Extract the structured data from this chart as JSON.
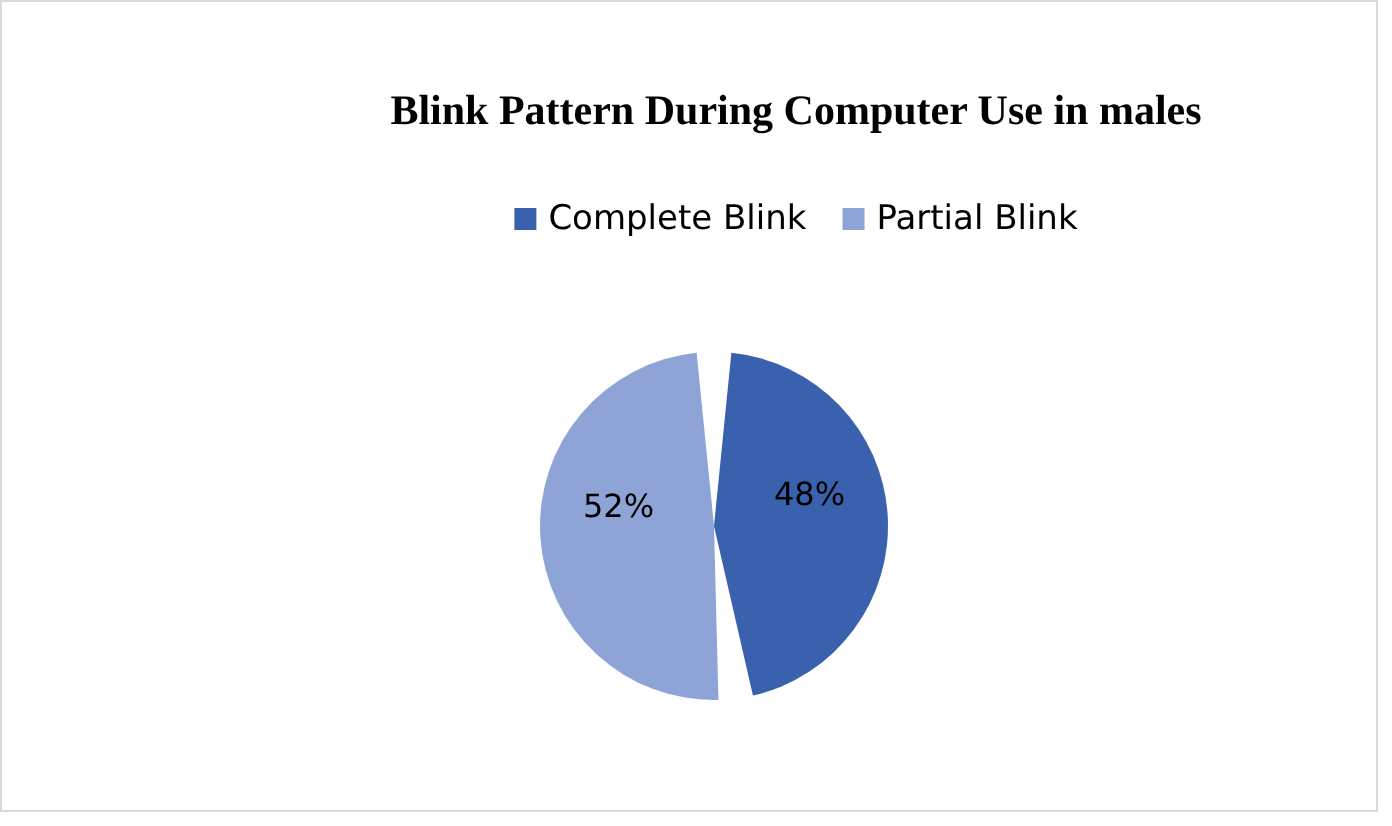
{
  "chart_data": {
    "type": "pie",
    "title": "Blink Pattern During Computer Use in males",
    "categories": [
      "Complete Blink",
      "Partial Blink"
    ],
    "values": [
      48,
      52
    ],
    "colors": [
      "#3a61ad",
      "#8fa4d6"
    ],
    "value_labels": [
      "48%",
      "52%"
    ],
    "legend": "top"
  }
}
